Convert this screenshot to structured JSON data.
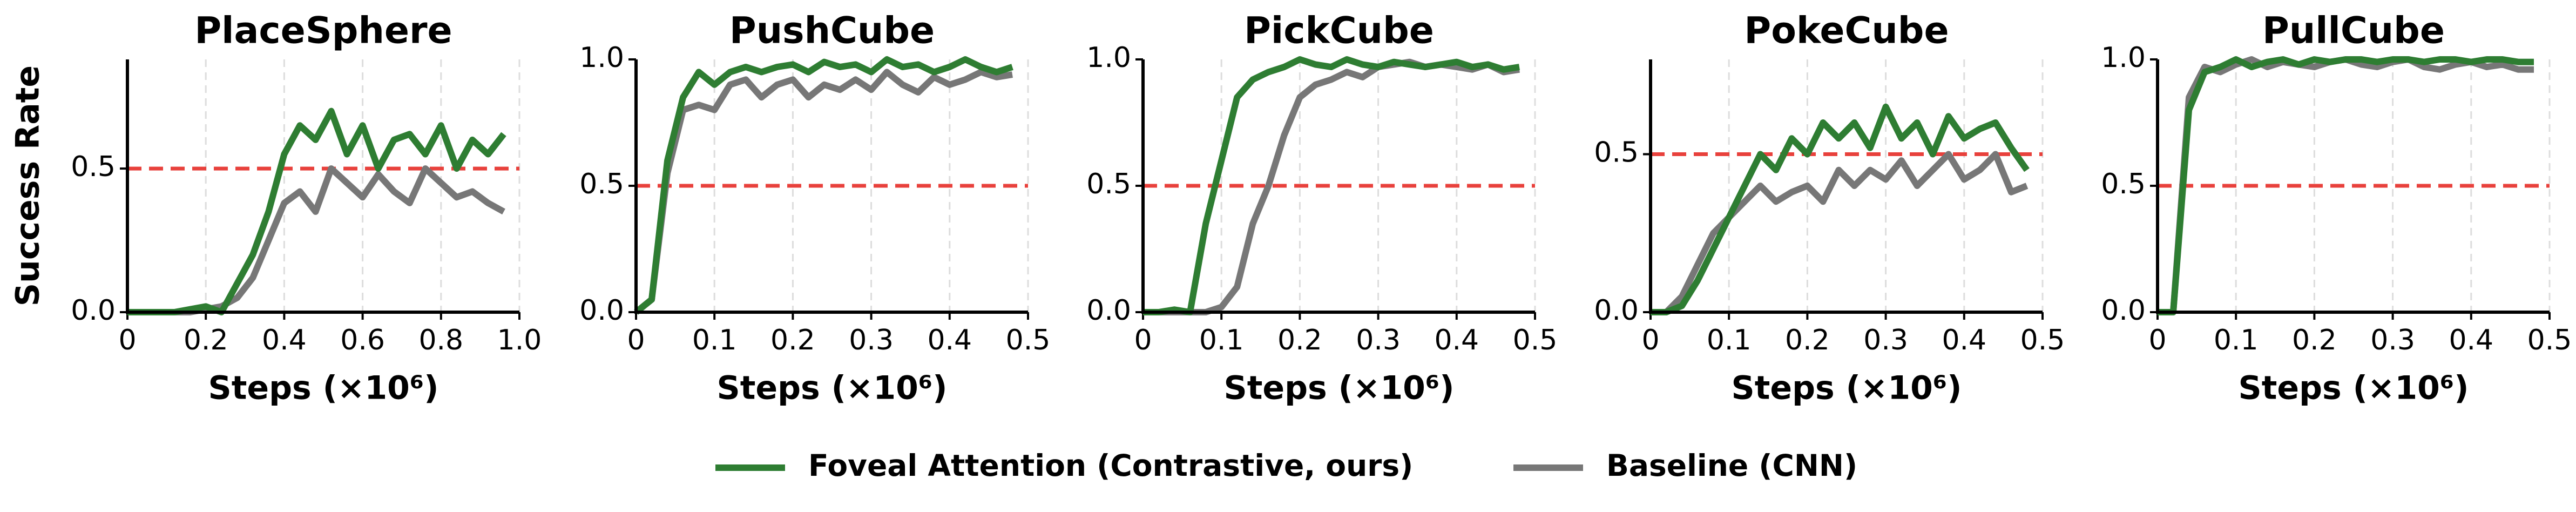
{
  "chart_data": [
    {
      "type": "line",
      "title": "PlaceSphere",
      "ylabel": "Success Rate",
      "xlabel": "Steps (×10⁶)",
      "x": [
        0,
        0.04,
        0.08,
        0.12,
        0.16,
        0.2,
        0.24,
        0.28,
        0.32,
        0.36,
        0.4,
        0.44,
        0.48,
        0.52,
        0.56,
        0.6,
        0.64,
        0.68,
        0.72,
        0.76,
        0.8,
        0.84,
        0.88,
        0.92,
        0.96
      ],
      "series": [
        {
          "name": "Foveal Attention (Contrastive, ours)",
          "color": "#2e7d32",
          "values": [
            0,
            0,
            0,
            0,
            0.01,
            0.02,
            0,
            0.1,
            0.2,
            0.35,
            0.55,
            0.65,
            0.6,
            0.7,
            0.55,
            0.65,
            0.5,
            0.6,
            0.62,
            0.55,
            0.65,
            0.5,
            0.6,
            0.55,
            0.62
          ]
        },
        {
          "name": "Baseline (CNN)",
          "color": "#777777",
          "values": [
            0,
            0,
            0,
            0,
            0,
            0.01,
            0.02,
            0.05,
            0.12,
            0.25,
            0.38,
            0.42,
            0.35,
            0.5,
            0.45,
            0.4,
            0.48,
            0.42,
            0.38,
            0.5,
            0.45,
            0.4,
            0.42,
            0.38,
            0.35
          ]
        }
      ],
      "xlim": [
        0,
        1
      ],
      "ylim": [
        0,
        0.88
      ],
      "xticks": [
        0,
        0.2,
        0.4,
        0.6,
        0.8,
        {
          "value": 1,
          "label": "1.0"
        }
      ],
      "yticks": [
        {
          "value": 0,
          "label": "0.0"
        },
        0.5
      ],
      "grid": "x",
      "hline": {
        "value": 0.5,
        "color": "#e8413c"
      }
    },
    {
      "type": "line",
      "title": "PushCube",
      "xlabel": "Steps (×10⁶)",
      "x": [
        0,
        0.02,
        0.04,
        0.06,
        0.08,
        0.1,
        0.12,
        0.14,
        0.16,
        0.18,
        0.2,
        0.22,
        0.24,
        0.26,
        0.28,
        0.3,
        0.32,
        0.34,
        0.36,
        0.38,
        0.4,
        0.42,
        0.44,
        0.46,
        0.48
      ],
      "series": [
        {
          "name": "Foveal Attention (Contrastive, ours)",
          "color": "#2e7d32",
          "values": [
            0,
            0.05,
            0.6,
            0.85,
            0.95,
            0.9,
            0.95,
            0.97,
            0.95,
            0.97,
            0.98,
            0.95,
            0.99,
            0.97,
            0.98,
            0.95,
            1.0,
            0.97,
            0.98,
            0.95,
            0.97,
            1.0,
            0.97,
            0.95,
            0.97
          ]
        },
        {
          "name": "Baseline (CNN)",
          "color": "#777777",
          "values": [
            0,
            0.05,
            0.55,
            0.8,
            0.82,
            0.8,
            0.9,
            0.92,
            0.85,
            0.9,
            0.92,
            0.85,
            0.9,
            0.88,
            0.92,
            0.88,
            0.95,
            0.9,
            0.87,
            0.93,
            0.9,
            0.92,
            0.95,
            0.93,
            0.94
          ]
        }
      ],
      "xlim": [
        0,
        0.5
      ],
      "ylim": [
        0,
        1
      ],
      "xticks": [
        0,
        0.1,
        0.2,
        0.3,
        0.4,
        0.5
      ],
      "yticks": [
        {
          "value": 0,
          "label": "0.0"
        },
        0.5,
        {
          "value": 1,
          "label": "1.0"
        }
      ],
      "grid": "x",
      "hline": {
        "value": 0.5,
        "color": "#e8413c"
      }
    },
    {
      "type": "line",
      "title": "PickCube",
      "xlabel": "Steps (×10⁶)",
      "x": [
        0,
        0.02,
        0.04,
        0.06,
        0.08,
        0.1,
        0.12,
        0.14,
        0.16,
        0.18,
        0.2,
        0.22,
        0.24,
        0.26,
        0.28,
        0.3,
        0.32,
        0.34,
        0.36,
        0.38,
        0.4,
        0.42,
        0.44,
        0.46,
        0.48
      ],
      "series": [
        {
          "name": "Foveal Attention (Contrastive, ours)",
          "color": "#2e7d32",
          "values": [
            0,
            0,
            0.01,
            0,
            0.35,
            0.6,
            0.85,
            0.92,
            0.95,
            0.97,
            1.0,
            0.98,
            0.97,
            1.0,
            0.98,
            0.97,
            0.99,
            0.98,
            0.97,
            0.98,
            0.99,
            0.97,
            0.98,
            0.96,
            0.97
          ]
        },
        {
          "name": "Baseline (CNN)",
          "color": "#777777",
          "values": [
            0,
            0,
            0,
            0,
            0,
            0.02,
            0.1,
            0.35,
            0.5,
            0.7,
            0.85,
            0.9,
            0.92,
            0.95,
            0.93,
            0.97,
            0.98,
            0.99,
            0.97,
            0.98,
            0.97,
            0.96,
            0.98,
            0.95,
            0.96
          ]
        }
      ],
      "xlim": [
        0,
        0.5
      ],
      "ylim": [
        0,
        1
      ],
      "xticks": [
        0,
        0.1,
        0.2,
        0.3,
        0.4,
        0.5
      ],
      "yticks": [
        {
          "value": 0,
          "label": "0.0"
        },
        0.5,
        {
          "value": 1,
          "label": "1.0"
        }
      ],
      "grid": "x",
      "hline": {
        "value": 0.5,
        "color": "#e8413c"
      }
    },
    {
      "type": "line",
      "title": "PokeCube",
      "xlabel": "Steps (×10⁶)",
      "x": [
        0,
        0.02,
        0.04,
        0.06,
        0.08,
        0.1,
        0.12,
        0.14,
        0.16,
        0.18,
        0.2,
        0.22,
        0.24,
        0.26,
        0.28,
        0.3,
        0.32,
        0.34,
        0.36,
        0.38,
        0.4,
        0.42,
        0.44,
        0.46,
        0.48
      ],
      "series": [
        {
          "name": "Foveal Attention (Contrastive, ours)",
          "color": "#2e7d32",
          "values": [
            0,
            0,
            0.02,
            0.1,
            0.2,
            0.3,
            0.4,
            0.5,
            0.45,
            0.55,
            0.5,
            0.6,
            0.55,
            0.6,
            0.52,
            0.65,
            0.55,
            0.6,
            0.5,
            0.62,
            0.55,
            0.58,
            0.6,
            0.52,
            0.45
          ]
        },
        {
          "name": "Baseline (CNN)",
          "color": "#777777",
          "values": [
            0,
            0,
            0.05,
            0.15,
            0.25,
            0.3,
            0.35,
            0.4,
            0.35,
            0.38,
            0.4,
            0.35,
            0.45,
            0.4,
            0.45,
            0.42,
            0.48,
            0.4,
            0.45,
            0.5,
            0.42,
            0.45,
            0.5,
            0.38,
            0.4
          ]
        }
      ],
      "xlim": [
        0,
        0.5
      ],
      "ylim": [
        0,
        0.8
      ],
      "xticks": [
        0,
        0.1,
        0.2,
        0.3,
        0.4,
        0.5
      ],
      "yticks": [
        {
          "value": 0,
          "label": "0.0"
        },
        0.5
      ],
      "grid": "x",
      "hline": {
        "value": 0.5,
        "color": "#e8413c"
      }
    },
    {
      "type": "line",
      "title": "PullCube",
      "xlabel": "Steps (×10⁶)",
      "x": [
        0,
        0.02,
        0.04,
        0.06,
        0.08,
        0.1,
        0.12,
        0.14,
        0.16,
        0.18,
        0.2,
        0.22,
        0.24,
        0.26,
        0.28,
        0.3,
        0.32,
        0.34,
        0.36,
        0.38,
        0.4,
        0.42,
        0.44,
        0.46,
        0.48
      ],
      "series": [
        {
          "name": "Foveal Attention (Contrastive, ours)",
          "color": "#2e7d32",
          "values": [
            0,
            0,
            0.8,
            0.95,
            0.97,
            1.0,
            0.97,
            0.99,
            1.0,
            0.98,
            1.0,
            0.99,
            1.0,
            1.0,
            0.99,
            1.0,
            1.0,
            0.99,
            1.0,
            1.0,
            0.99,
            1.0,
            1.0,
            0.99,
            0.99
          ]
        },
        {
          "name": "Baseline (CNN)",
          "color": "#777777",
          "values": [
            0,
            0,
            0.85,
            0.97,
            0.95,
            0.98,
            1.0,
            0.97,
            0.99,
            0.98,
            0.97,
            0.99,
            1.0,
            0.98,
            0.97,
            0.99,
            1.0,
            0.97,
            0.96,
            0.98,
            0.99,
            0.97,
            0.98,
            0.96,
            0.96
          ]
        }
      ],
      "xlim": [
        0,
        0.5
      ],
      "ylim": [
        0,
        1
      ],
      "xticks": [
        0,
        0.1,
        0.2,
        0.3,
        0.4,
        0.5
      ],
      "yticks": [
        {
          "value": 0,
          "label": "0.0"
        },
        0.5,
        {
          "value": 1,
          "label": "1.0"
        }
      ],
      "grid": "x",
      "hline": {
        "value": 0.5,
        "color": "#e8413c"
      }
    }
  ]
}
